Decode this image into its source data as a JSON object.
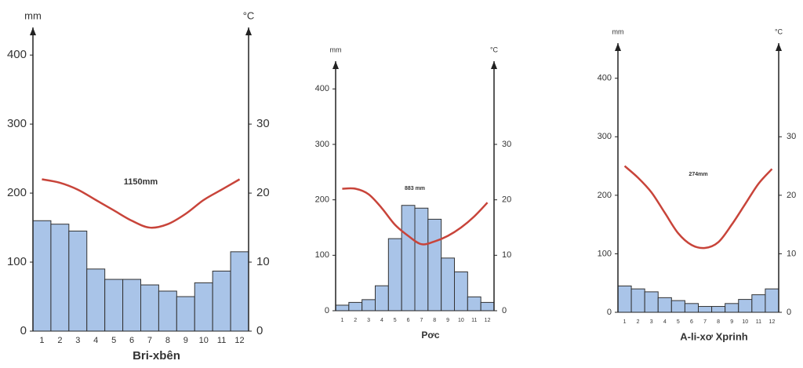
{
  "chart_data": [
    {
      "type": "bar",
      "title": "Bri-xbên",
      "annotation": "1150mm",
      "ylabel": "mm",
      "y2label": "°C",
      "categories": [
        "1",
        "2",
        "3",
        "4",
        "5",
        "6",
        "7",
        "8",
        "9",
        "10",
        "11",
        "12"
      ],
      "ylim": [
        0,
        440
      ],
      "yticks": [
        0,
        100,
        200,
        300,
        400
      ],
      "y2lim": [
        0,
        44
      ],
      "y2ticks": [
        0,
        10,
        20,
        30
      ],
      "series": [
        {
          "type": "bar",
          "color": "#a9c4e8",
          "values": [
            160,
            155,
            145,
            90,
            75,
            75,
            67,
            58,
            50,
            70,
            87,
            115
          ]
        },
        {
          "type": "line",
          "axis": "y2",
          "color": "#c8443a",
          "values": [
            22,
            21.5,
            20.5,
            19,
            17.5,
            16,
            15,
            15.5,
            17,
            19,
            20.5,
            22
          ]
        }
      ]
    },
    {
      "type": "bar",
      "title": "Pơc",
      "annotation": "883 mm",
      "ylabel": "mm",
      "y2label": "°C",
      "categories": [
        "1",
        "2",
        "3",
        "4",
        "5",
        "6",
        "7",
        "8",
        "9",
        "10",
        "11",
        "12"
      ],
      "ylim": [
        0,
        450
      ],
      "yticks": [
        0,
        100,
        200,
        300,
        400
      ],
      "y2lim": [
        0,
        45
      ],
      "y2ticks": [
        0,
        10,
        20,
        30
      ],
      "series": [
        {
          "type": "bar",
          "color": "#a9c4e8",
          "values": [
            10,
            15,
            20,
            45,
            130,
            190,
            185,
            165,
            95,
            70,
            25,
            15
          ]
        },
        {
          "type": "line",
          "axis": "y2",
          "color": "#c8443a",
          "values": [
            22,
            22,
            21,
            18.5,
            15.5,
            13.5,
            12,
            12.5,
            13.5,
            15,
            17,
            19.5
          ]
        }
      ]
    },
    {
      "type": "bar",
      "title": "A-li-xơ Xprinh",
      "annotation": "274mm",
      "ylabel": "mm",
      "y2label": "°C",
      "categories": [
        "1",
        "2",
        "3",
        "4",
        "5",
        "6",
        "7",
        "8",
        "9",
        "10",
        "11",
        "12"
      ],
      "ylim": [
        0,
        460
      ],
      "yticks": [
        0,
        100,
        200,
        300,
        400
      ],
      "y2lim": [
        0,
        46
      ],
      "y2ticks": [
        0,
        10,
        20,
        30
      ],
      "series": [
        {
          "type": "bar",
          "color": "#a9c4e8",
          "values": [
            45,
            40,
            35,
            25,
            20,
            15,
            10,
            10,
            15,
            22,
            30,
            40
          ]
        },
        {
          "type": "line",
          "axis": "y2",
          "color": "#c8443a",
          "values": [
            25,
            23,
            20.5,
            17,
            13.5,
            11.5,
            11,
            12,
            15,
            18.5,
            22,
            24.5
          ]
        }
      ]
    }
  ]
}
